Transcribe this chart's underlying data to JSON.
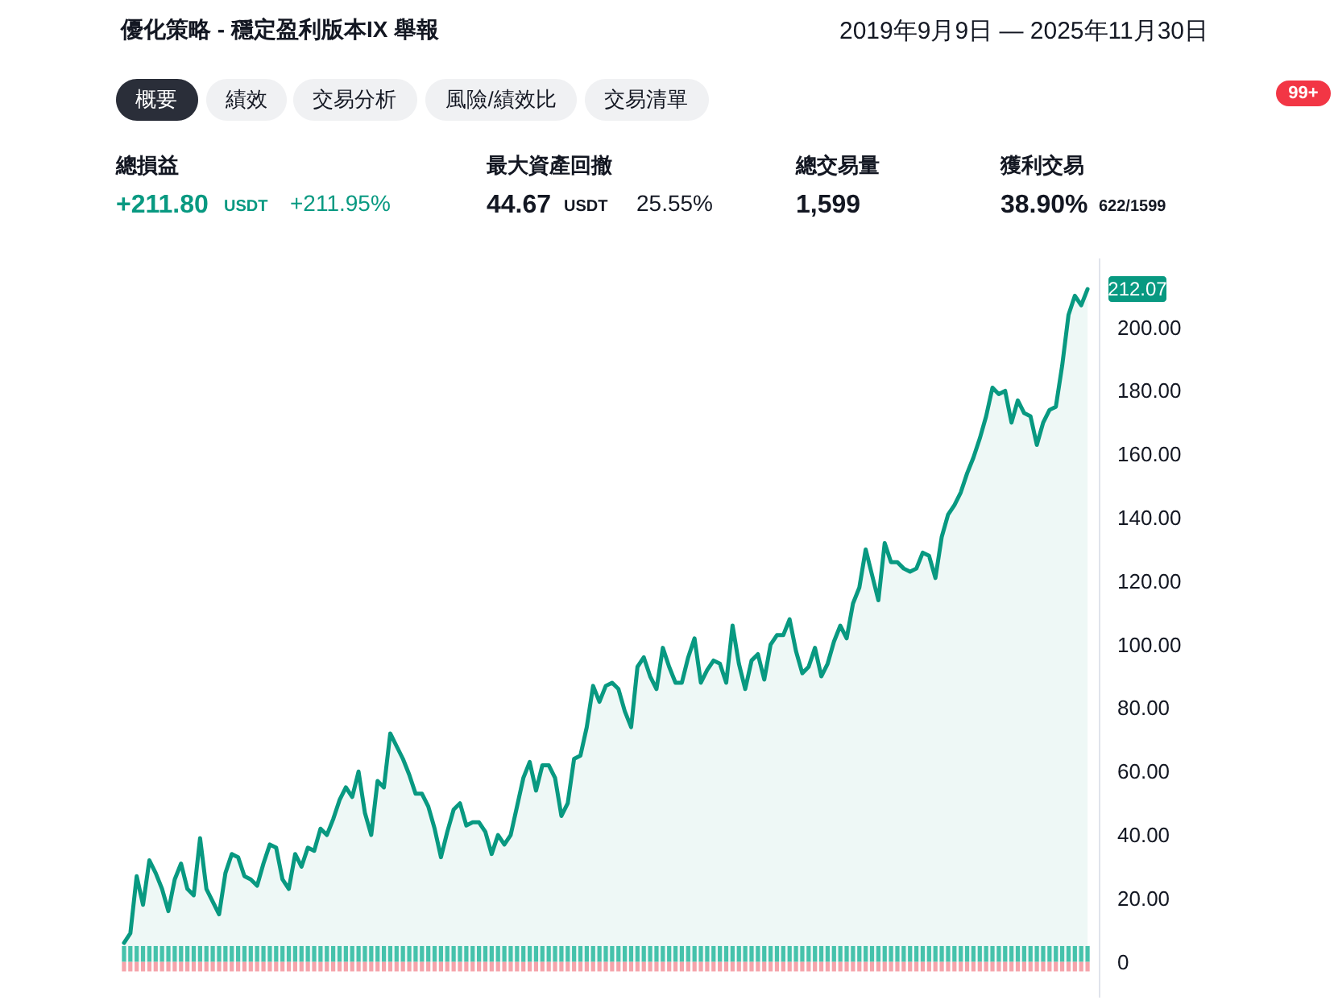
{
  "chart_data": {
    "type": "area",
    "title": "優化策略 - 穩定盈利版本IX 舉報",
    "subtitle": "2019年9月9日 — 2025年11月30日",
    "categories": [
      null,
      null,
      null,
      null,
      null,
      null,
      null,
      null,
      null,
      null,
      null,
      null,
      null,
      null,
      null,
      null,
      null,
      null,
      null,
      null,
      null,
      null,
      null,
      null,
      null,
      null,
      null,
      null,
      null,
      null,
      null,
      null,
      null,
      null,
      null,
      null,
      null,
      null,
      null,
      null,
      null,
      null,
      null,
      null,
      null,
      null,
      null,
      null,
      null,
      null,
      null,
      null,
      null,
      null,
      null,
      null,
      null,
      null,
      null,
      null,
      null,
      null,
      null,
      null,
      null,
      null,
      null,
      null,
      null,
      null,
      null,
      null,
      null,
      null,
      null,
      null,
      null,
      null,
      null,
      null,
      null,
      null,
      null,
      null,
      null,
      null,
      null,
      null,
      null,
      null,
      null,
      null,
      null,
      null,
      null,
      null,
      null,
      null,
      null,
      null,
      null,
      null,
      null,
      null,
      null,
      null,
      null,
      null,
      null,
      null,
      null,
      null,
      null,
      null,
      null,
      null,
      null,
      null,
      null,
      null,
      null,
      null,
      null,
      null,
      null,
      null,
      null,
      null,
      null,
      null,
      null,
      null,
      null,
      null,
      null,
      null,
      null,
      null,
      null,
      null,
      null,
      null,
      null,
      null,
      null,
      null,
      null,
      null,
      null,
      null,
      null,
      null,
      null
    ],
    "series": [
      {
        "color": "#089981",
        "values": [
          6,
          9,
          27,
          18,
          32,
          28,
          23,
          16,
          26,
          31,
          23,
          21,
          39,
          23,
          19,
          15,
          28,
          34,
          33,
          27,
          26,
          24,
          31,
          37,
          36,
          26,
          23,
          34,
          30,
          36,
          35,
          42,
          40,
          45,
          51,
          55,
          52,
          60,
          47,
          40,
          57,
          55,
          72,
          68,
          64,
          59,
          53,
          53,
          49,
          42,
          33,
          41,
          48,
          50,
          43,
          44,
          44,
          41,
          34,
          40,
          37,
          40,
          49,
          58,
          63,
          54,
          62,
          62,
          58,
          46,
          50,
          64,
          65,
          74,
          87,
          82,
          87,
          88,
          86,
          79,
          74,
          93,
          96,
          90,
          86,
          99,
          93,
          88,
          88,
          96,
          102,
          88,
          92,
          95,
          94,
          88,
          106,
          94,
          86,
          95,
          97,
          89,
          100,
          103,
          103,
          108,
          98,
          91,
          93,
          99,
          90,
          94,
          101,
          106,
          102,
          113,
          118,
          130,
          122,
          114,
          132,
          126,
          126,
          124,
          123,
          124,
          129,
          128,
          121,
          134,
          141,
          144,
          148,
          154,
          159,
          165,
          172,
          181,
          179,
          180,
          170,
          177,
          173,
          172,
          163,
          170,
          174,
          175,
          188,
          204,
          210,
          207,
          212.07
        ],
        "value_labels": [
          null,
          null,
          null,
          null,
          null,
          null,
          null,
          null,
          null,
          null,
          null,
          null,
          null,
          null,
          null,
          null,
          null,
          null,
          null,
          null,
          null,
          null,
          null,
          null,
          null,
          null,
          null,
          null,
          null,
          null,
          null,
          null,
          null,
          null,
          null,
          null,
          null,
          null,
          null,
          null,
          null,
          null,
          null,
          null,
          null,
          null,
          null,
          null,
          null,
          null,
          null,
          null,
          null,
          null,
          null,
          null,
          null,
          null,
          null,
          null,
          null,
          null,
          null,
          null,
          null,
          null,
          null,
          null,
          null,
          null,
          null,
          null,
          null,
          null,
          null,
          null,
          null,
          null,
          null,
          null,
          null,
          null,
          null,
          null,
          null,
          null,
          null,
          null,
          null,
          null,
          null,
          null,
          null,
          null,
          null,
          null,
          null,
          null,
          null,
          null,
          null,
          null,
          null,
          null,
          null,
          null,
          null,
          null,
          null,
          null,
          null,
          null,
          null,
          null,
          null,
          null,
          null,
          null,
          null,
          null,
          null,
          null,
          null,
          null,
          null,
          null,
          null,
          null,
          null,
          null,
          null,
          null,
          null,
          null,
          null,
          null,
          null,
          null,
          null,
          null,
          null,
          null,
          null,
          null,
          null,
          null,
          null,
          null,
          null,
          null,
          null,
          null,
          "212.07"
        ]
      },
      {
        "type": "bar",
        "color": "#45c2ab",
        "values": [
          5,
          5,
          5,
          5,
          5,
          5,
          5,
          5,
          5,
          5,
          5,
          5,
          5,
          5,
          5,
          5,
          5,
          5,
          5,
          5,
          5,
          5,
          5,
          5,
          5,
          5,
          5,
          5,
          5,
          5,
          5,
          5,
          5,
          5,
          5,
          5,
          5,
          5,
          5,
          5,
          5,
          5,
          5,
          5,
          5,
          5,
          5,
          5,
          5,
          5,
          5,
          5,
          5,
          5,
          5,
          5,
          5,
          5,
          5,
          5,
          5,
          5,
          5,
          5,
          5,
          5,
          5,
          5,
          5,
          5,
          5,
          5,
          5,
          5,
          5,
          5,
          5,
          5,
          5,
          5,
          5,
          5,
          5,
          5,
          5,
          5,
          5,
          5,
          5,
          5,
          5,
          5,
          5,
          5,
          5,
          5,
          5,
          5,
          5,
          5,
          5,
          5,
          5,
          5,
          5,
          5,
          5,
          5,
          5,
          5,
          5,
          5,
          5,
          5,
          5,
          5,
          5,
          5,
          5,
          5,
          5,
          5,
          5,
          5,
          5,
          5,
          5,
          5,
          5,
          5,
          5,
          5,
          5,
          5,
          5,
          5,
          5,
          5,
          5,
          5,
          5,
          5,
          5,
          5,
          5,
          5,
          5,
          5,
          5,
          5,
          5,
          5,
          5
        ]
      },
      {
        "type": "bar",
        "color": "#f5a3aa",
        "values": [
          -3,
          -3,
          -3,
          -3,
          -3,
          -3,
          -3,
          -3,
          -3,
          -3,
          -3,
          -3,
          -3,
          -3,
          -3,
          -3,
          -3,
          -3,
          -3,
          -3,
          -3,
          -3,
          -3,
          -3,
          -3,
          -3,
          -3,
          -3,
          -3,
          -3,
          -3,
          -3,
          -3,
          -3,
          -3,
          -3,
          -3,
          -3,
          -3,
          -3,
          -3,
          -3,
          -3,
          -3,
          -3,
          -3,
          -3,
          -3,
          -3,
          -3,
          -3,
          -3,
          -3,
          -3,
          -3,
          -3,
          -3,
          -3,
          -3,
          -3,
          -3,
          -3,
          -3,
          -3,
          -3,
          -3,
          -3,
          -3,
          -3,
          -3,
          -3,
          -3,
          -3,
          -3,
          -3,
          -3,
          -3,
          -3,
          -3,
          -3,
          -3,
          -3,
          -3,
          -3,
          -3,
          -3,
          -3,
          -3,
          -3,
          -3,
          -3,
          -3,
          -3,
          -3,
          -3,
          -3,
          -3,
          -3,
          -3,
          -3,
          -3,
          -3,
          -3,
          -3,
          -3,
          -3,
          -3,
          -3,
          -3,
          -3,
          -3,
          -3,
          -3,
          -3,
          -3,
          -3,
          -3,
          -3,
          -3,
          -3,
          -3,
          -3,
          -3,
          -3,
          -3,
          -3,
          -3,
          -3,
          -3,
          -3,
          -3,
          -3,
          -3,
          -3,
          -3,
          -3,
          -3,
          -3,
          -3,
          -3,
          -3,
          -3,
          -3,
          -3,
          -3,
          -3,
          -3,
          -3,
          -3,
          -3,
          -3,
          -3,
          -3
        ]
      }
    ],
    "stacked": true,
    "ylim": [
      -11,
      222
    ],
    "yticks": [
      0,
      {
        "value": 20,
        "label": "20.00"
      },
      {
        "value": 40,
        "label": "40.00"
      },
      {
        "value": 60,
        "label": "60.00"
      },
      {
        "value": 80,
        "label": "80.00"
      },
      {
        "value": 100,
        "label": "100.00"
      },
      {
        "value": 120,
        "label": "120.00"
      },
      {
        "value": 140,
        "label": "140.00"
      },
      {
        "value": 160,
        "label": "160.00"
      },
      {
        "value": 180,
        "label": "180.00"
      },
      {
        "value": 200,
        "label": "200.00"
      }
    ],
    "tick_labels": "y",
    "annotations": [
      "概要",
      "績效",
      "交易分析",
      "風險/績效比",
      "交易清單",
      "總損益",
      "+211.80",
      "USDT",
      "+211.95%",
      "最大資產回撤",
      "44.67",
      "USDT",
      "25.55%",
      "總交易量",
      "1,599",
      "獲利交易",
      "38.90%",
      "622/1599",
      "99+"
    ]
  }
}
